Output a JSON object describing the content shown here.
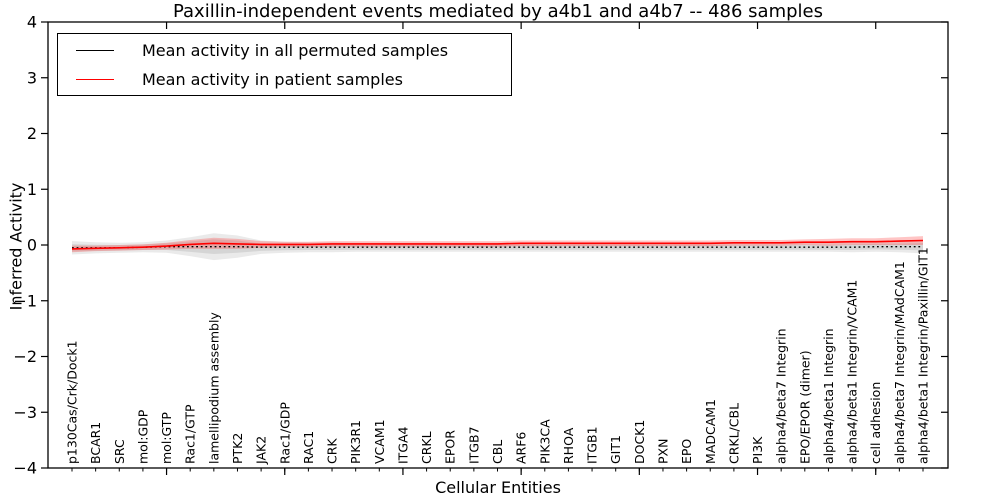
{
  "title": "Paxillin-independent events mediated by a4b1 and a4b7 -- 486 samples",
  "axes": {
    "xlabel": "Cellular Entities",
    "ylabel": "Inferred Activity",
    "ytick_labels": [
      "4",
      "3",
      "2",
      "1",
      "0",
      "−1",
      "−2",
      "−3",
      "−4"
    ],
    "ytick_values": [
      4,
      3,
      2,
      1,
      0,
      -1,
      -2,
      -3,
      -4
    ]
  },
  "legend": {
    "entries": [
      {
        "label": "Mean activity in all permuted samples",
        "color": "#000000"
      },
      {
        "label": "Mean activity in patient samples",
        "color": "#ff0000"
      }
    ]
  },
  "colors": {
    "permuted_line": "#000000",
    "patient_line": "#ff0000",
    "permuted_band": "#8c8c8c",
    "patient_band": "#ff4040",
    "frame": "#000000"
  },
  "chart_data": {
    "type": "line",
    "title": "Paxillin-independent events mediated by a4b1 and a4b7 -- 486 samples",
    "xlabel": "Cellular Entities",
    "ylabel": "Inferred Activity",
    "ylim": [
      -4,
      4
    ],
    "grid": false,
    "legend_position": "upper left",
    "categories": [
      "p130Cas/Crk/Dock1",
      "BCAR1",
      "SRC",
      "mol:GDP",
      "mol:GTP",
      "Rac1/GTP",
      "lamellipodium assembly",
      "PTK2",
      "JAK2",
      "Rac1/GDP",
      "RAC1",
      "CRK",
      "PIK3R1",
      "VCAM1",
      "ITGA4",
      "CRKL",
      "EPOR",
      "ITGB7",
      "CBL",
      "ARF6",
      "PIK3CA",
      "RHOA",
      "ITGB1",
      "GIT1",
      "DOCK1",
      "PXN",
      "EPO",
      "MADCAM1",
      "CRKL/CBL",
      "PI3K",
      "alpha4/beta7 Integrin",
      "EPO/EPOR (dimer)",
      "alpha4/beta1 Integrin",
      "alpha4/beta1 Integrin/VCAM1",
      "cell adhesion",
      "alpha4/beta7 Integrin/MAdCAM1",
      "alpha4/beta1 Integrin/Paxillin/GIT1"
    ],
    "series": [
      {
        "name": "Mean activity in all permuted samples",
        "color": "#000000",
        "style": "dotted",
        "values": [
          -0.05,
          -0.05,
          -0.05,
          -0.04,
          -0.03,
          -0.03,
          -0.03,
          -0.03,
          -0.04,
          -0.04,
          -0.04,
          -0.04,
          -0.04,
          -0.04,
          -0.04,
          -0.04,
          -0.04,
          -0.04,
          -0.04,
          -0.04,
          -0.04,
          -0.04,
          -0.04,
          -0.04,
          -0.04,
          -0.04,
          -0.04,
          -0.04,
          -0.04,
          -0.04,
          -0.04,
          -0.04,
          -0.04,
          -0.04,
          -0.03,
          -0.03,
          -0.03
        ]
      },
      {
        "name": "Mean activity in patient samples",
        "color": "#ff0000",
        "style": "solid",
        "values": [
          -0.07,
          -0.06,
          -0.05,
          -0.04,
          -0.02,
          0.01,
          0.03,
          0.02,
          0.01,
          0.01,
          0.01,
          0.02,
          0.02,
          0.02,
          0.02,
          0.02,
          0.02,
          0.02,
          0.02,
          0.03,
          0.03,
          0.03,
          0.03,
          0.03,
          0.03,
          0.03,
          0.03,
          0.03,
          0.04,
          0.04,
          0.04,
          0.05,
          0.05,
          0.06,
          0.06,
          0.07,
          0.08
        ]
      }
    ],
    "bands": [
      {
        "around_series": "Mean activity in all permuted samples",
        "color": "#8c8c8c",
        "halfwidth": [
          0.12,
          0.1,
          0.09,
          0.09,
          0.11,
          0.17,
          0.24,
          0.2,
          0.12,
          0.1,
          0.09,
          0.09,
          0.08,
          0.08,
          0.08,
          0.08,
          0.08,
          0.08,
          0.08,
          0.08,
          0.08,
          0.08,
          0.08,
          0.08,
          0.08,
          0.08,
          0.08,
          0.08,
          0.08,
          0.08,
          0.08,
          0.08,
          0.08,
          0.09,
          0.09,
          0.1,
          0.12
        ]
      },
      {
        "around_series": "Mean activity in patient samples",
        "color": "#ff4040",
        "halfwidth": [
          0.06,
          0.05,
          0.05,
          0.05,
          0.06,
          0.08,
          0.1,
          0.09,
          0.06,
          0.05,
          0.05,
          0.05,
          0.05,
          0.05,
          0.05,
          0.05,
          0.05,
          0.05,
          0.05,
          0.05,
          0.05,
          0.05,
          0.05,
          0.05,
          0.05,
          0.05,
          0.05,
          0.05,
          0.05,
          0.05,
          0.05,
          0.05,
          0.06,
          0.06,
          0.06,
          0.07,
          0.08
        ]
      }
    ],
    "major_xtick_indices": [
      4,
      9,
      14,
      19,
      24,
      29,
      34
    ]
  }
}
